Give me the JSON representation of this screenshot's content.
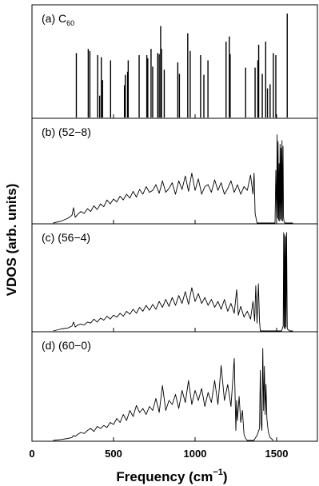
{
  "colors": {
    "line": "#000000",
    "background": "#ffffff"
  },
  "chart_data": {
    "type": "line",
    "xlabel": "Frequency (cm",
    "xlabel_sup": "−1",
    "xlabel_end": ")",
    "ylabel": "VDOS (arb. units)",
    "xlim": [
      0,
      1750
    ],
    "xticks": [
      {
        "value": 0,
        "label": "0"
      },
      {
        "value": 500,
        "label": "500"
      },
      {
        "value": 1000,
        "label": "1000"
      },
      {
        "value": 1500,
        "label": "1500"
      }
    ],
    "panels": [
      {
        "label": "(a) C",
        "label_sub": "60",
        "type": "bar",
        "x": [
          272,
          345,
          355,
          403,
          415,
          425,
          433,
          482,
          567,
          572,
          586,
          590,
          657,
          704,
          710,
          730,
          740,
          771,
          780,
          789,
          794,
          811,
          894,
          904,
          955,
          970,
          1034,
          1054,
          1079,
          1190,
          1210,
          1215,
          1310,
          1368,
          1385,
          1390,
          1412,
          1433,
          1444,
          1460,
          1480,
          1495,
          1565
        ],
        "y": [
          0.62,
          0.66,
          0.64,
          0.6,
          0.21,
          0.58,
          0.36,
          0.55,
          0.31,
          0.41,
          0.44,
          0.55,
          0.6,
          0.6,
          0.57,
          0.66,
          0.49,
          0.62,
          0.61,
          0.88,
          0.66,
          0.46,
          0.53,
          0.42,
          0.81,
          0.64,
          0.6,
          0.41,
          0.55,
          0.73,
          0.78,
          0.61,
          0.48,
          0.48,
          0.55,
          0.7,
          0.42,
          0.73,
          0.28,
          0.32,
          0.62,
          0.6,
          1.0
        ]
      },
      {
        "label": "(b)  (52−8)",
        "type": "line",
        "x": [
          130,
          180,
          220,
          245,
          255,
          265,
          280,
          300,
          320,
          340,
          360,
          380,
          400,
          420,
          440,
          460,
          480,
          500,
          520,
          540,
          560,
          580,
          600,
          620,
          640,
          660,
          680,
          700,
          720,
          740,
          760,
          780,
          800,
          820,
          840,
          860,
          880,
          900,
          920,
          940,
          960,
          980,
          1000,
          1020,
          1040,
          1060,
          1080,
          1100,
          1120,
          1140,
          1160,
          1180,
          1200,
          1220,
          1240,
          1260,
          1280,
          1300,
          1320,
          1340,
          1355,
          1362,
          1368,
          1375,
          1380,
          1390,
          1400,
          1420,
          1440,
          1460,
          1480,
          1490,
          1495,
          1500,
          1503,
          1506,
          1509,
          1512,
          1515,
          1518,
          1521,
          1524,
          1527,
          1530,
          1533,
          1536,
          1539,
          1542,
          1545,
          1550,
          1560,
          1580,
          1600
        ],
        "y": [
          0,
          0.02,
          0.05,
          0.08,
          0.16,
          0.06,
          0.09,
          0.12,
          0.1,
          0.15,
          0.12,
          0.18,
          0.14,
          0.2,
          0.17,
          0.24,
          0.2,
          0.25,
          0.22,
          0.28,
          0.24,
          0.3,
          0.26,
          0.33,
          0.27,
          0.35,
          0.3,
          0.38,
          0.32,
          0.34,
          0.4,
          0.31,
          0.44,
          0.32,
          0.36,
          0.42,
          0.3,
          0.44,
          0.35,
          0.49,
          0.33,
          0.52,
          0.34,
          0.46,
          0.3,
          0.38,
          0.4,
          0.32,
          0.45,
          0.34,
          0.42,
          0.3,
          0.36,
          0.44,
          0.32,
          0.4,
          0.3,
          0.38,
          0.34,
          0.5,
          0.3,
          0.52,
          0.1,
          0.04,
          0,
          0,
          0,
          0,
          0,
          0,
          0,
          0,
          0.55,
          0.02,
          0.92,
          0.05,
          0.85,
          0.03,
          0.62,
          0.02,
          0.82,
          0.04,
          0.78,
          0.03,
          0.86,
          0.02,
          0.8,
          0.06,
          0.02,
          0,
          0,
          0,
          0
        ]
      },
      {
        "label": "(c)  (56−4)",
        "type": "line",
        "x": [
          130,
          180,
          220,
          245,
          255,
          265,
          280,
          300,
          320,
          340,
          360,
          380,
          400,
          420,
          440,
          460,
          480,
          500,
          520,
          540,
          560,
          580,
          600,
          620,
          640,
          660,
          680,
          700,
          720,
          740,
          760,
          780,
          800,
          820,
          840,
          860,
          880,
          900,
          920,
          940,
          960,
          980,
          1000,
          1020,
          1040,
          1060,
          1080,
          1100,
          1120,
          1140,
          1160,
          1180,
          1200,
          1220,
          1240,
          1255,
          1265,
          1280,
          1300,
          1320,
          1340,
          1355,
          1365,
          1372,
          1380,
          1388,
          1395,
          1400,
          1420,
          1450,
          1480,
          1510,
          1530,
          1540,
          1543,
          1546,
          1549,
          1552,
          1555,
          1558,
          1561,
          1565,
          1580,
          1600
        ],
        "y": [
          0,
          0.02,
          0.03,
          0.05,
          0.09,
          0.04,
          0.06,
          0.07,
          0.06,
          0.09,
          0.08,
          0.12,
          0.09,
          0.13,
          0.11,
          0.15,
          0.12,
          0.16,
          0.14,
          0.18,
          0.15,
          0.2,
          0.17,
          0.22,
          0.18,
          0.24,
          0.2,
          0.26,
          0.21,
          0.27,
          0.22,
          0.3,
          0.24,
          0.32,
          0.25,
          0.34,
          0.26,
          0.36,
          0.28,
          0.4,
          0.27,
          0.44,
          0.3,
          0.38,
          0.28,
          0.34,
          0.26,
          0.32,
          0.24,
          0.3,
          0.22,
          0.32,
          0.2,
          0.28,
          0.18,
          0.42,
          0.16,
          0.25,
          0.14,
          0.2,
          0.12,
          0.3,
          0.1,
          0.46,
          0.08,
          0.48,
          0.1,
          0,
          0,
          0,
          0,
          0,
          0,
          0.05,
          1.0,
          0.03,
          0.98,
          0.02,
          0.96,
          0.04,
          1.0,
          0.02,
          0,
          0
        ]
      },
      {
        "label": "(d)  (60−0)",
        "type": "line",
        "x": [
          130,
          180,
          220,
          245,
          255,
          265,
          280,
          300,
          320,
          340,
          360,
          380,
          400,
          420,
          440,
          460,
          480,
          500,
          520,
          540,
          560,
          580,
          600,
          620,
          640,
          660,
          680,
          700,
          720,
          740,
          760,
          780,
          800,
          820,
          840,
          860,
          880,
          900,
          920,
          940,
          960,
          980,
          1000,
          1020,
          1040,
          1060,
          1080,
          1100,
          1120,
          1140,
          1160,
          1180,
          1200,
          1220,
          1240,
          1250,
          1255,
          1260,
          1270,
          1280,
          1290,
          1300,
          1310,
          1320,
          1340,
          1360,
          1380,
          1395,
          1400,
          1405,
          1410,
          1415,
          1420,
          1425,
          1430,
          1435,
          1440,
          1445,
          1450,
          1460,
          1480
        ],
        "y": [
          0,
          0.01,
          0.02,
          0.03,
          0.05,
          0.04,
          0.06,
          0.08,
          0.07,
          0.1,
          0.12,
          0.09,
          0.14,
          0.12,
          0.15,
          0.13,
          0.18,
          0.16,
          0.22,
          0.18,
          0.26,
          0.2,
          0.3,
          0.24,
          0.35,
          0.28,
          0.32,
          0.26,
          0.34,
          0.3,
          0.42,
          0.28,
          0.55,
          0.3,
          0.4,
          0.36,
          0.46,
          0.32,
          0.5,
          0.38,
          0.6,
          0.36,
          0.5,
          0.4,
          0.52,
          0.34,
          0.48,
          0.38,
          0.6,
          0.36,
          0.75,
          0.4,
          0.56,
          0.34,
          0.82,
          0.1,
          0.4,
          0.2,
          0.44,
          0.18,
          0.3,
          0.06,
          0.02,
          0,
          0,
          0,
          0.05,
          0.12,
          0.7,
          0.18,
          0.1,
          0.92,
          0.3,
          0.74,
          0.26,
          0.56,
          0.22,
          0.14,
          0.08,
          0.03,
          0
        ]
      }
    ]
  }
}
